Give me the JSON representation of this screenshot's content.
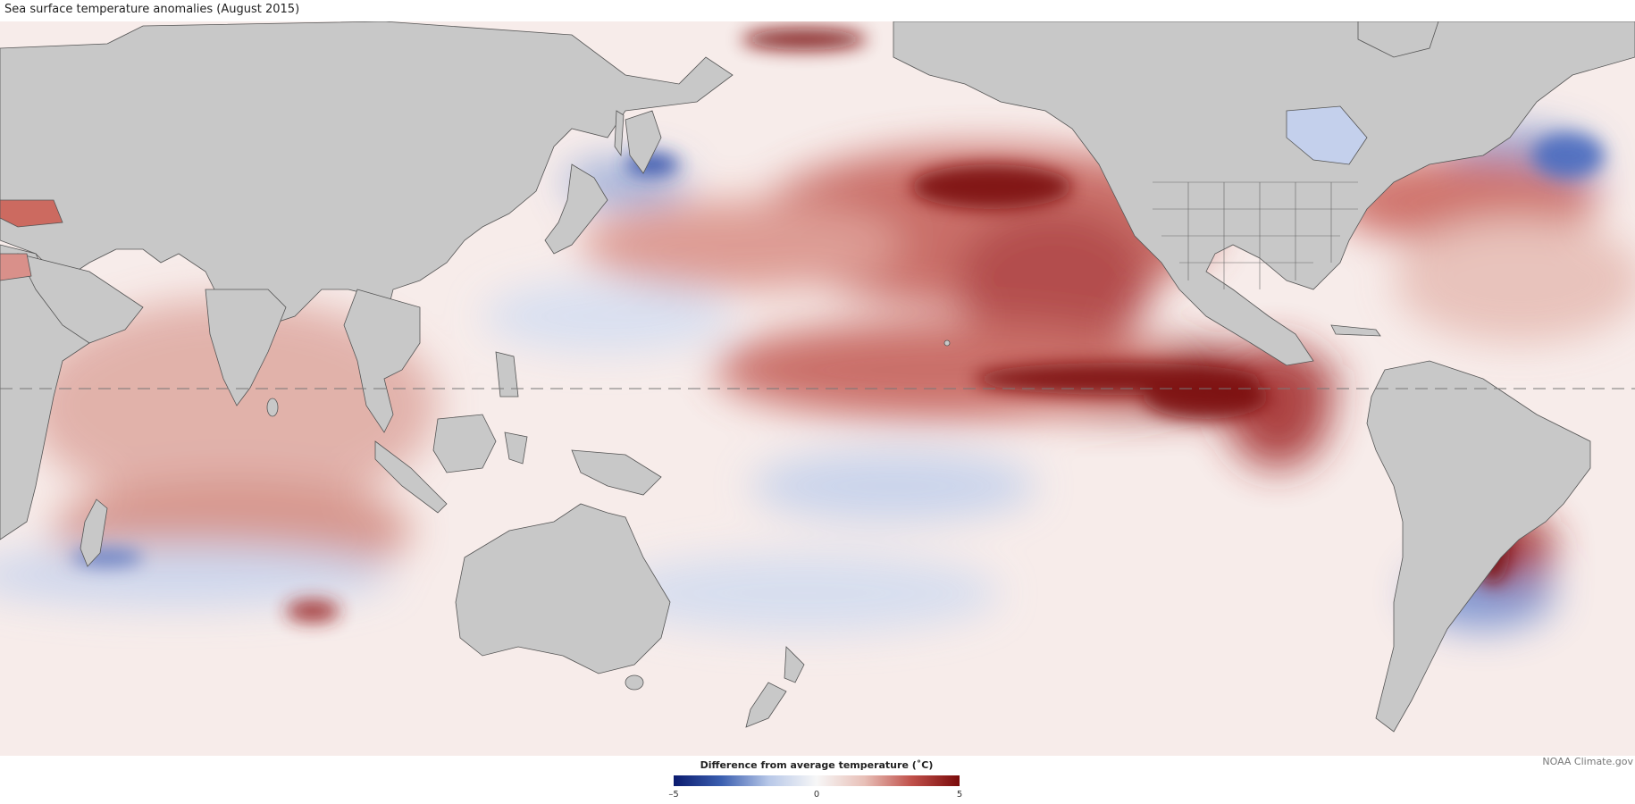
{
  "title": "Sea surface temperature anomalies (August 2015)",
  "credit": "NOAA Climate.gov",
  "legend": {
    "title": "Difference from average temperature (˚C)",
    "ticks": [
      {
        "value": -5,
        "label": "–5"
      },
      {
        "value": 0,
        "label": "0"
      },
      {
        "value": 5,
        "label": "5"
      }
    ],
    "min": -5,
    "max": 5,
    "colors": [
      "#0a1a6e",
      "#3b5fb0",
      "#b8c8e8",
      "#f7f7f7",
      "#e8c0b8",
      "#c0504a",
      "#7a0a0a"
    ]
  },
  "map": {
    "land_color": "#c8c8c8",
    "border_color": "#555555",
    "equator_style": "dashed"
  }
}
